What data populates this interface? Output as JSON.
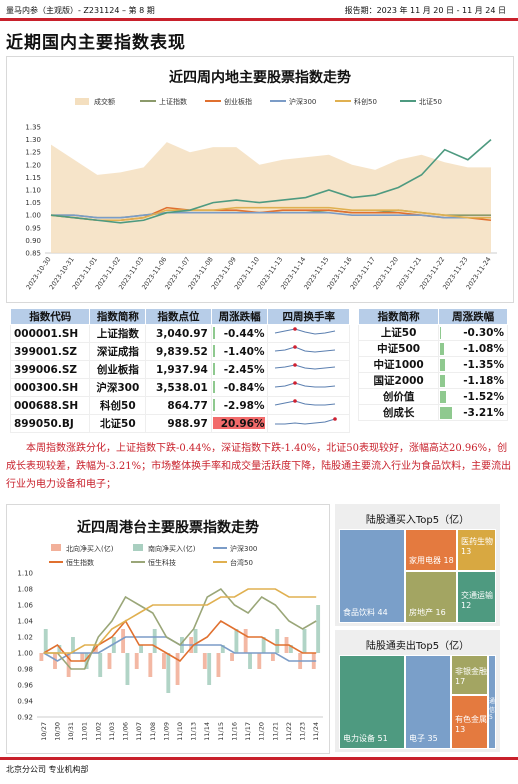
{
  "header": {
    "left": "量马内参（主观版）- Z231124 – 第 8 期",
    "right": "报告期：2023 年 11 月 20 日 - 11 月 24 日"
  },
  "page_title": "近期国内主要指数表现",
  "main_chart": {
    "title": "近四周内地主要股票指数走势",
    "legend": [
      "成交额",
      "上证指数",
      "创业板指",
      "沪深300",
      "科创50",
      "北证50"
    ],
    "yticks": [
      "1.35",
      "1.30",
      "1.25",
      "1.20",
      "1.15",
      "1.10",
      "1.05",
      "1.00",
      "0.95",
      "0.90",
      "0.85"
    ],
    "xticks": [
      "2023-10-30",
      "2023-10-31",
      "2023-11-01",
      "2023-11-02",
      "2023-11-03",
      "2023-11-06",
      "2023-11-07",
      "2023-11-08",
      "2023-11-09",
      "2023-11-10",
      "2023-11-13",
      "2023-11-14",
      "2023-11-15",
      "2023-11-16",
      "2023-11-17",
      "2023-11-20",
      "2023-11-21",
      "2023-11-22",
      "2023-11-23",
      "2023-11-24"
    ],
    "colors": {
      "成交额": "#f4dfbf",
      "上证指数": "#8b9a6b",
      "创业板指": "#e0702f",
      "沪深300": "#7b9cc7",
      "科创50": "#e0b050",
      "北证50": "#4e9a80"
    }
  },
  "chart_data": [
    {
      "type": "line",
      "title": "近四周内地主要股票指数走势",
      "x": [
        "2023-10-30",
        "2023-10-31",
        "2023-11-01",
        "2023-11-02",
        "2023-11-03",
        "2023-11-06",
        "2023-11-07",
        "2023-11-08",
        "2023-11-09",
        "2023-11-10",
        "2023-11-13",
        "2023-11-14",
        "2023-11-15",
        "2023-11-16",
        "2023-11-17",
        "2023-11-20",
        "2023-11-21",
        "2023-11-22",
        "2023-11-23",
        "2023-11-24"
      ],
      "ylim": [
        0.85,
        1.35
      ],
      "series": [
        {
          "name": "成交额",
          "kind": "area",
          "values": [
            1.28,
            1.22,
            1.16,
            1.17,
            1.19,
            1.29,
            1.25,
            1.27,
            1.27,
            1.2,
            1.22,
            1.23,
            1.24,
            1.2,
            1.18,
            1.22,
            1.24,
            1.21,
            1.19,
            1.19
          ]
        },
        {
          "name": "上证指数",
          "values": [
            1.0,
            1.0,
            0.99,
            0.99,
            1.0,
            1.01,
            1.01,
            1.01,
            1.01,
            1.01,
            1.01,
            1.01,
            1.02,
            1.01,
            1.01,
            1.02,
            1.01,
            1.0,
            1.0,
            1.0
          ]
        },
        {
          "name": "创业板指",
          "values": [
            1.0,
            0.99,
            0.98,
            0.98,
            0.99,
            1.03,
            1.02,
            1.02,
            1.02,
            1.01,
            1.02,
            1.02,
            1.02,
            1.01,
            1.01,
            1.01,
            1.0,
            0.99,
            0.99,
            0.98
          ]
        },
        {
          "name": "沪深300",
          "values": [
            1.0,
            1.0,
            0.99,
            0.99,
            1.0,
            1.01,
            1.01,
            1.01,
            1.01,
            1.01,
            1.01,
            1.01,
            1.01,
            1.0,
            1.0,
            1.0,
            1.0,
            0.99,
            0.99,
            0.99
          ]
        },
        {
          "name": "科创50",
          "values": [
            1.0,
            0.99,
            0.98,
            0.98,
            0.99,
            1.02,
            1.02,
            1.02,
            1.03,
            1.03,
            1.03,
            1.03,
            1.03,
            1.02,
            1.02,
            1.02,
            1.01,
            1.0,
            0.99,
            0.99
          ]
        },
        {
          "name": "北证50",
          "values": [
            1.0,
            0.99,
            0.98,
            0.97,
            0.98,
            1.01,
            1.02,
            1.05,
            1.06,
            1.05,
            1.06,
            1.07,
            1.1,
            1.07,
            1.08,
            1.11,
            1.16,
            1.26,
            1.22,
            1.3
          ]
        }
      ],
      "legend_position": "top"
    },
    {
      "type": "bar+line",
      "title": "近四周港台主要股票指数走势",
      "x": [
        "10/27",
        "10/30",
        "10/31",
        "11/01",
        "11/02",
        "11/03",
        "11/06",
        "11/07",
        "11/08",
        "11/09",
        "11/10",
        "11/13",
        "11/14",
        "11/15",
        "11/16",
        "11/17",
        "11/20",
        "11/21",
        "11/22",
        "11/23",
        "11/24"
      ],
      "ylim": [
        0.92,
        1.1
      ],
      "series": [
        {
          "name": "北向净买入(亿)",
          "kind": "bar",
          "values": [
            -0.01,
            -0.02,
            -0.03,
            -0.01,
            0.01,
            -0.02,
            0.03,
            -0.02,
            -0.03,
            -0.02,
            -0.04,
            0.02,
            -0.02,
            -0.03,
            -0.01,
            0.03,
            -0.02,
            -0.01,
            0.02,
            -0.02,
            -0.02
          ]
        },
        {
          "name": "南向净买入(亿)",
          "kind": "bar",
          "values": [
            0.03,
            0.01,
            0.02,
            -0.02,
            -0.03,
            0.02,
            -0.04,
            0.01,
            0.03,
            -0.05,
            0.02,
            0.03,
            -0.04,
            0.01,
            0.03,
            -0.02,
            0.02,
            0.03,
            0.01,
            0.03,
            0.06
          ]
        },
        {
          "name": "沪深300",
          "values": [
            1.0,
            0.99,
            1.0,
            1.0,
            1.0,
            1.01,
            1.02,
            1.02,
            1.02,
            1.02,
            1.01,
            1.01,
            1.01,
            1.01,
            1.0,
            1.0,
            1.0,
            1.0,
            0.99,
            0.99,
            0.99
          ]
        },
        {
          "name": "恒生指数",
          "values": [
            1.0,
            1.01,
            0.99,
            0.99,
            1.01,
            1.02,
            1.04,
            1.01,
            1.01,
            1.0,
            0.99,
            1.01,
            1.02,
            1.04,
            1.03,
            1.02,
            1.02,
            1.01,
            1.01,
            1.0,
            1.0
          ]
        },
        {
          "name": "恒生科技",
          "values": [
            1.0,
            1.0,
            0.98,
            0.98,
            1.02,
            1.04,
            1.07,
            1.06,
            1.05,
            1.02,
            1.01,
            1.03,
            1.07,
            1.08,
            1.06,
            1.05,
            1.07,
            1.06,
            1.04,
            1.03,
            1.04
          ]
        },
        {
          "name": "台湾50",
          "values": [
            1.0,
            1.0,
            1.0,
            1.01,
            1.01,
            1.03,
            1.04,
            1.05,
            1.06,
            1.06,
            1.06,
            1.06,
            1.06,
            1.07,
            1.07,
            1.08,
            1.08,
            1.08,
            1.07,
            1.07,
            1.07
          ]
        }
      ]
    }
  ],
  "table_left": {
    "headers": [
      "指数代码",
      "指数简称",
      "指数点位",
      "周涨跌幅",
      "四周换手率"
    ],
    "rows": [
      {
        "code": "000001.SH",
        "name": "上证指数",
        "point": "3,040.97",
        "chg": "-0.44%",
        "chg_val": -0.44
      },
      {
        "code": "399001.SZ",
        "name": "深证成指",
        "point": "9,839.52",
        "chg": "-1.40%",
        "chg_val": -1.4
      },
      {
        "code": "399006.SZ",
        "name": "创业板指",
        "point": "1,937.94",
        "chg": "-2.45%",
        "chg_val": -2.45
      },
      {
        "code": "000300.SH",
        "name": "沪深300",
        "point": "3,538.01",
        "chg": "-0.84%",
        "chg_val": -0.84
      },
      {
        "code": "000688.SH",
        "name": "科创50",
        "point": "864.77",
        "chg": "-2.98%",
        "chg_val": -2.98
      },
      {
        "code": "899050.BJ",
        "name": "北证50",
        "point": "988.97",
        "chg": "20.96%",
        "chg_val": 20.96
      }
    ]
  },
  "table_right": {
    "headers": [
      "指数简称",
      "周涨跌幅"
    ],
    "rows": [
      {
        "name": "上证50",
        "chg": "-0.30%",
        "chg_val": -0.3
      },
      {
        "name": "中证500",
        "chg": "-1.08%",
        "chg_val": -1.08
      },
      {
        "name": "中证1000",
        "chg": "-1.35%",
        "chg_val": -1.35
      },
      {
        "name": "国证2000",
        "chg": "-1.18%",
        "chg_val": -1.18
      },
      {
        "name": "创价值",
        "chg": "-1.52%",
        "chg_val": -1.52
      },
      {
        "name": "创成长",
        "chg": "-3.21%",
        "chg_val": -3.21
      }
    ]
  },
  "summary": "本周指数涨跌分化，上证指数下跌-0.44%，深证指数下跌-1.40%，北证50表现较好，涨幅高达20.96%，创成长表现较差，跌幅为-3.21%；市场整体换手率和成交量活跃度下降，陆股通主要流入行业为食品饮料，主要流出行业为电力设备和电子；",
  "hk_chart": {
    "title": "近四周港台主要股票指数走势",
    "legend": [
      "北向净买入(亿)",
      "南向净买入(亿)",
      "沪深300",
      "恒生指数",
      "恒生科技",
      "台湾50"
    ],
    "yticks": [
      "1.10",
      "1.08",
      "1.06",
      "1.04",
      "1.02",
      "1.00",
      "0.98",
      "0.96",
      "0.94",
      "0.92"
    ],
    "xticks": [
      "10/27",
      "10/30",
      "10/31",
      "11/01",
      "11/02",
      "11/03",
      "11/06",
      "11/07",
      "11/08",
      "11/09",
      "11/10",
      "11/13",
      "11/14",
      "11/15",
      "11/16",
      "11/17",
      "11/20",
      "11/21",
      "11/22",
      "11/23",
      "11/24"
    ],
    "colors": {
      "北向净买入(亿)": "#f2b09a",
      "南向净买入(亿)": "#a9cfc0",
      "沪深300": "#7b9cc7",
      "恒生指数": "#e0702f",
      "恒生科技": "#9aa678",
      "台湾50": "#e0b050"
    }
  },
  "inflow": {
    "title": "陆股通买入Top5（亿）",
    "tiles": [
      {
        "name": "食品饮料",
        "value": "44",
        "color": "#7a9fc9"
      },
      {
        "name": "家用电器",
        "value": "18",
        "color": "#e47a3f"
      },
      {
        "name": "医药生物",
        "value": "13",
        "color": "#d8a841"
      },
      {
        "name": "房地产",
        "value": "16",
        "color": "#a3a562"
      },
      {
        "name": "交通运输",
        "value": "12",
        "color": "#4e9a80"
      }
    ]
  },
  "outflow": {
    "title": "陆股通卖出Top5（亿）",
    "tiles": [
      {
        "name": "电力设备",
        "value": "51",
        "color": "#4e9a80"
      },
      {
        "name": "电子",
        "value": "35",
        "color": "#7a9fc9"
      },
      {
        "name": "非银金融",
        "value": "17",
        "color": "#a3a562"
      },
      {
        "name": "有色金属",
        "value": "13",
        "color": "#e47a3f"
      },
      {
        "name": "通信",
        "value": "5",
        "color": "#7a9fc9"
      }
    ]
  },
  "footer": "北京分公司 专业机构部"
}
